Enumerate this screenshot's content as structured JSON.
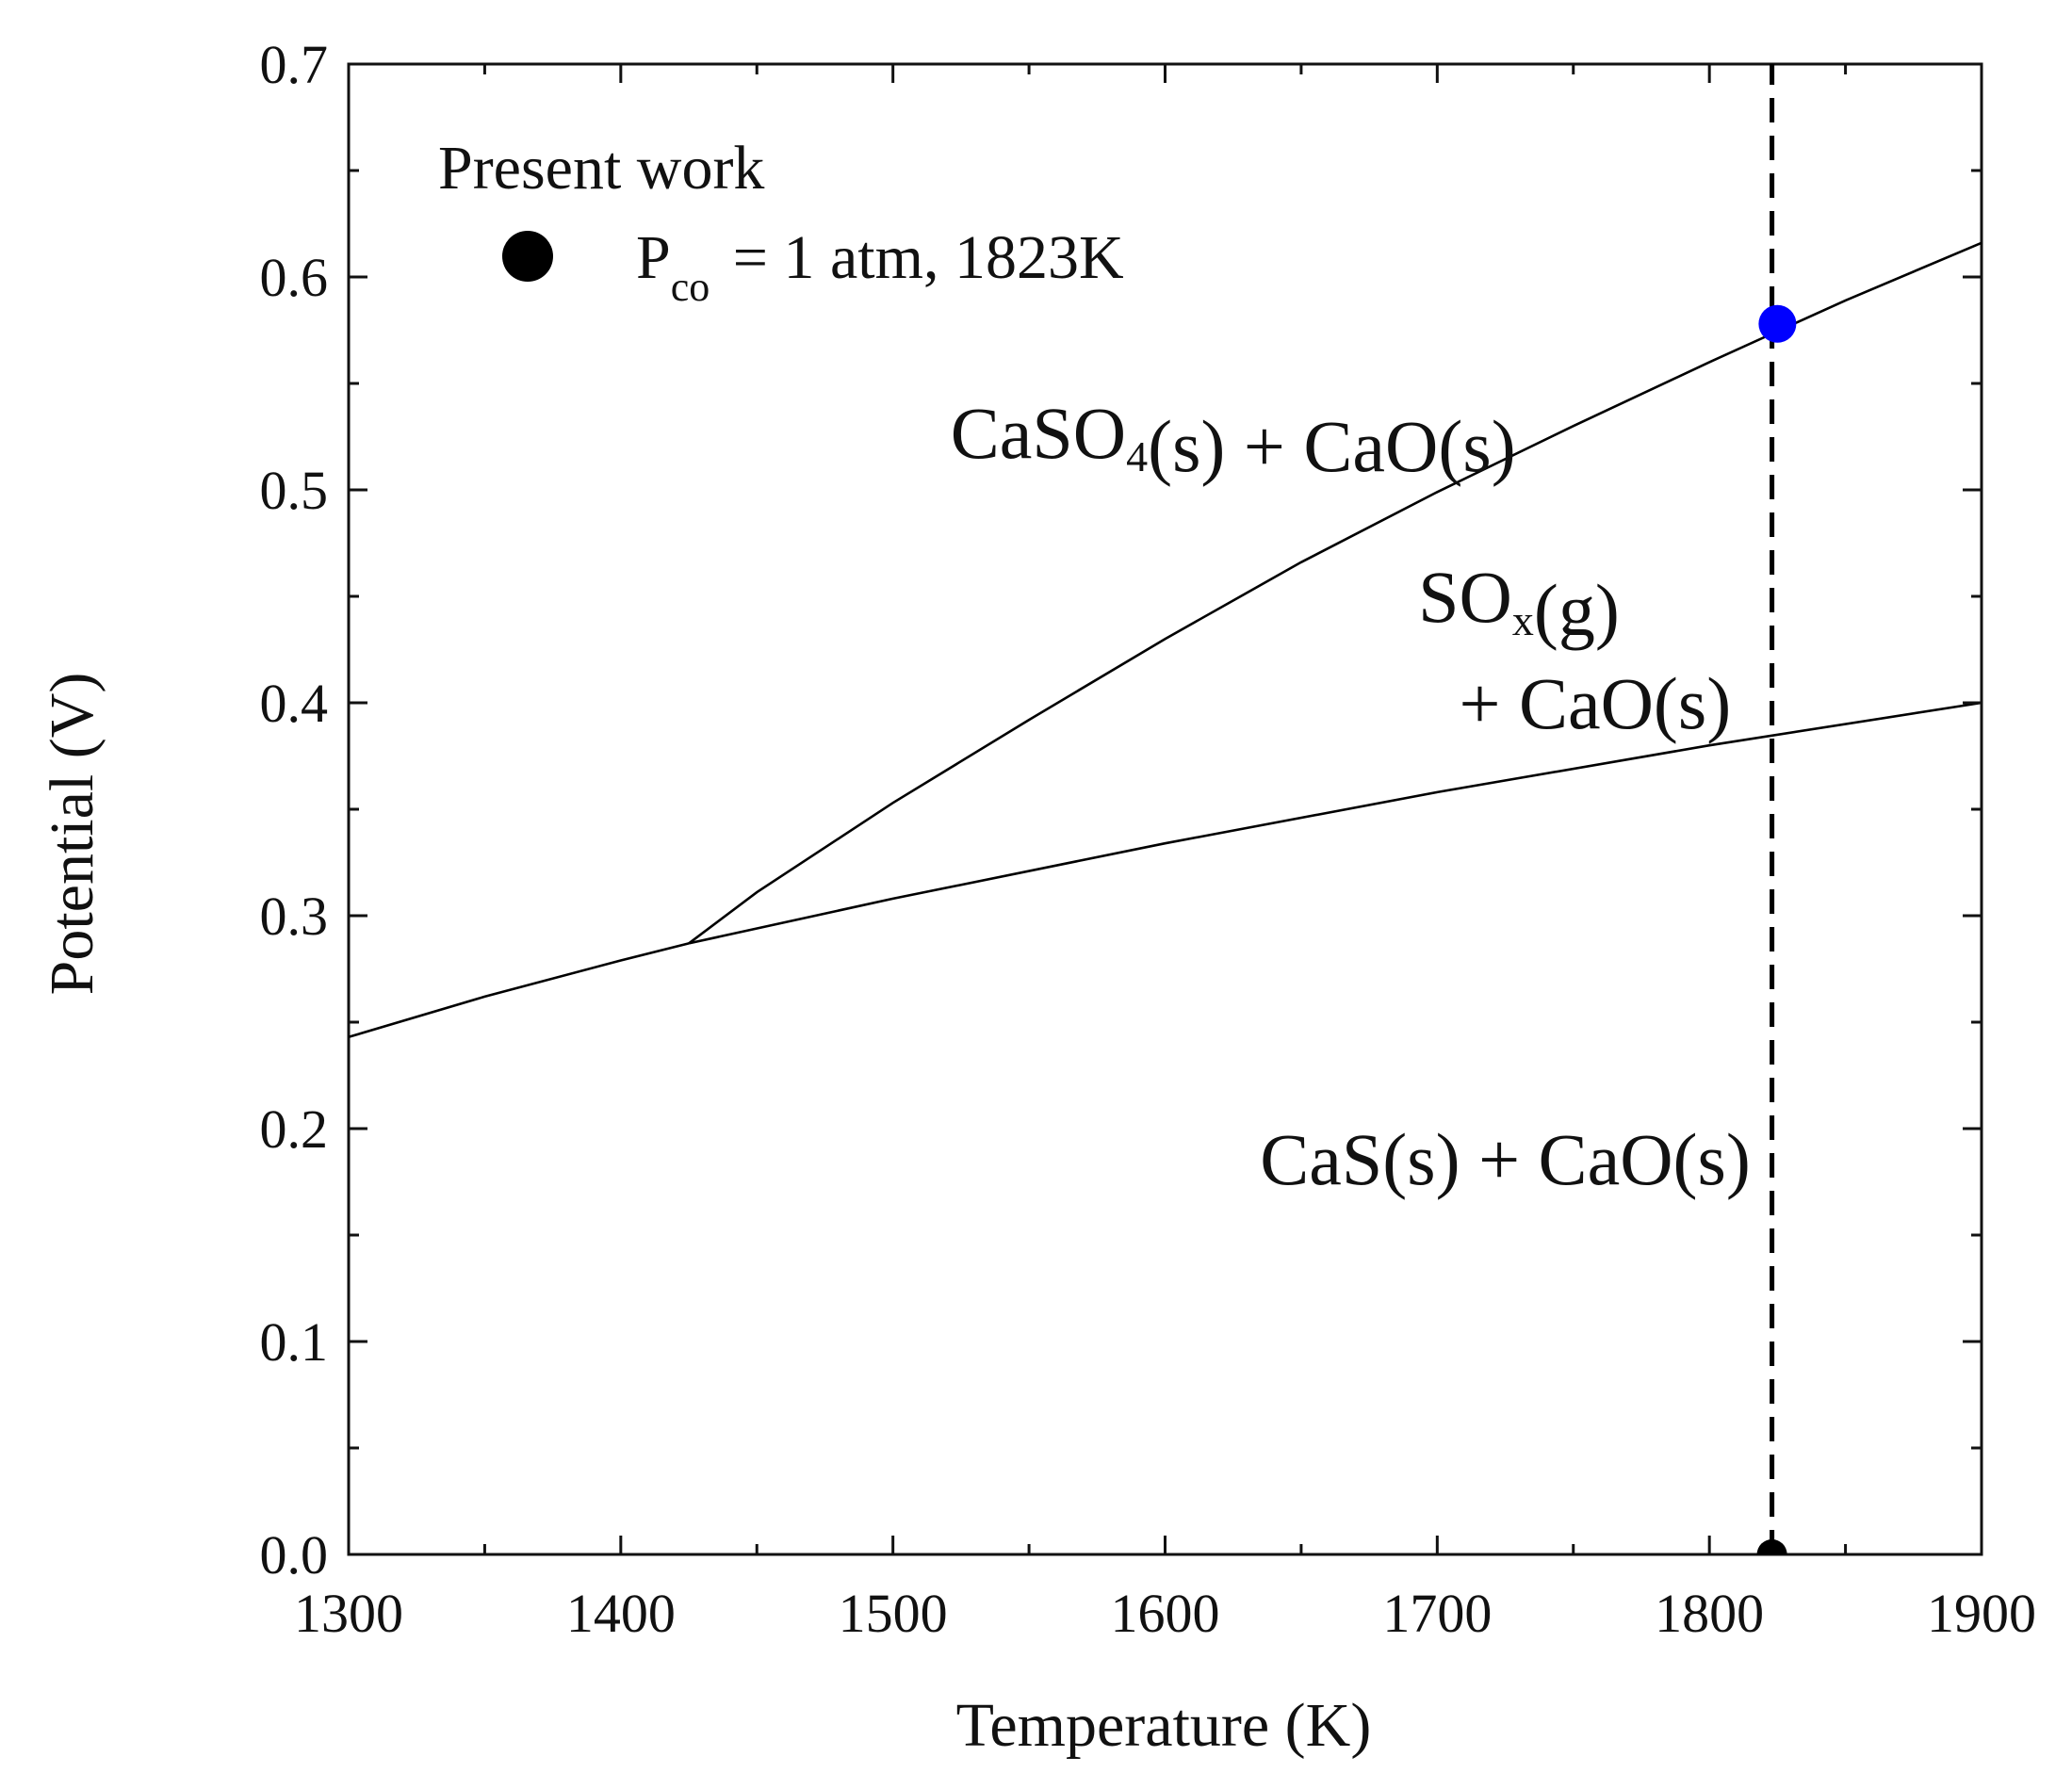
{
  "chart_data": {
    "type": "line",
    "xlabel": "Temperature (K)",
    "ylabel": "Potential (V)",
    "xlim": [
      1300,
      1900
    ],
    "ylim": [
      0.0,
      0.7
    ],
    "x_ticks": [
      1300,
      1400,
      1500,
      1600,
      1700,
      1800,
      1900
    ],
    "x_tick_labels": [
      "1300",
      "1400",
      "1500",
      "1600",
      "1700",
      "1800",
      "1900"
    ],
    "y_ticks": [
      0.0,
      0.1,
      0.2,
      0.3,
      0.4,
      0.5,
      0.6,
      0.7
    ],
    "y_tick_labels": [
      "0.0",
      "0.1",
      "0.2",
      "0.3",
      "0.4",
      "0.5",
      "0.6",
      "0.7"
    ],
    "grid": false,
    "legend": {
      "placement": "top-left",
      "title": "Present work",
      "entry_main": "P",
      "entry_sub": "co",
      "entry_rest": " = 1 atm, 1823K",
      "marker_color": "#000000"
    },
    "series": [
      {
        "style": "solid",
        "color": "#000000",
        "x": [
          1300,
          1350,
          1400,
          1425
        ],
        "y": [
          0.243,
          0.262,
          0.279,
          0.287
        ]
      },
      {
        "style": "solid",
        "color": "#000000",
        "x": [
          1425,
          1500,
          1600,
          1700,
          1800,
          1900
        ],
        "y": [
          0.287,
          0.308,
          0.334,
          0.358,
          0.38,
          0.4
        ]
      },
      {
        "style": "solid",
        "color": "#000000",
        "x": [
          1425,
          1450,
          1500,
          1550,
          1600,
          1650,
          1700,
          1750,
          1800,
          1850,
          1900
        ],
        "y": [
          0.287,
          0.311,
          0.353,
          0.392,
          0.43,
          0.466,
          0.499,
          0.53,
          0.56,
          0.589,
          0.616
        ]
      },
      {
        "style": "dashed",
        "color": "#000000",
        "x": [
          1823,
          1823
        ],
        "y": [
          0.0,
          0.7
        ]
      }
    ],
    "points": [
      {
        "x": 1825,
        "y": 0.578,
        "color": "#0000ff"
      },
      {
        "x": 1823,
        "y": 0.0,
        "color": "#000000"
      }
    ],
    "annotations": [
      {
        "x": 1625,
        "y": 0.515,
        "parts": [
          {
            "t": "CaSO"
          },
          {
            "t": "4",
            "sub": true
          },
          {
            "t": "(s) + CaO(s)"
          }
        ]
      },
      {
        "x": 1730,
        "y": 0.438,
        "parts": [
          {
            "t": "SO"
          },
          {
            "t": "x",
            "sub": true
          },
          {
            "t": "(g)"
          }
        ]
      },
      {
        "x": 1758,
        "y": 0.388,
        "parts": [
          {
            "t": "+ CaO(s)"
          }
        ]
      },
      {
        "x": 1725,
        "y": 0.174,
        "parts": [
          {
            "t": "CaS(s) + CaO(s)"
          }
        ]
      }
    ]
  }
}
